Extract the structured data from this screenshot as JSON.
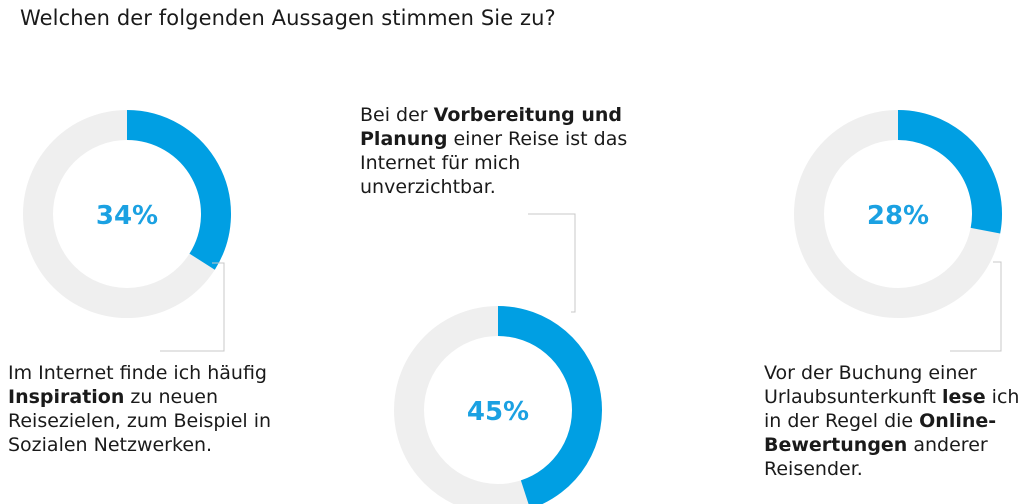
{
  "title": "Welchen der folgenden Aussagen stimmen Sie zu?",
  "colors": {
    "accent": "#009fe3",
    "track": "#efefef",
    "leader": "#c8c8c8"
  },
  "chart_data": {
    "type": "pie",
    "title": "Welchen der folgenden Aussagen stimmen Sie zu?",
    "items": [
      {
        "value": 34,
        "label": "34%",
        "text": [
          {
            "t": "Im Internet finde ich häufig ",
            "b": false
          },
          {
            "t": "Inspiration",
            "b": true
          },
          {
            "t": " zu neuen Reisezielen, zum Beispiel in Sozialen Netzwerken.",
            "b": false
          }
        ]
      },
      {
        "value": 45,
        "label": "45%",
        "text": [
          {
            "t": "Bei der ",
            "b": false
          },
          {
            "t": "Vorbereitung und Planung",
            "b": true
          },
          {
            "t": " einer Reise ist das Internet für mich unverzichtbar.",
            "b": false
          }
        ]
      },
      {
        "value": 28,
        "label": "28%",
        "text": [
          {
            "t": "Vor der Buchung einer Urlaubsunterkunft ",
            "b": false
          },
          {
            "t": "lese",
            "b": true
          },
          {
            "t": " ich in der Regel die ",
            "b": false
          },
          {
            "t": "Online-Bewertungen",
            "b": true
          },
          {
            "t": " anderer Reisender.",
            "b": false
          }
        ]
      }
    ]
  }
}
